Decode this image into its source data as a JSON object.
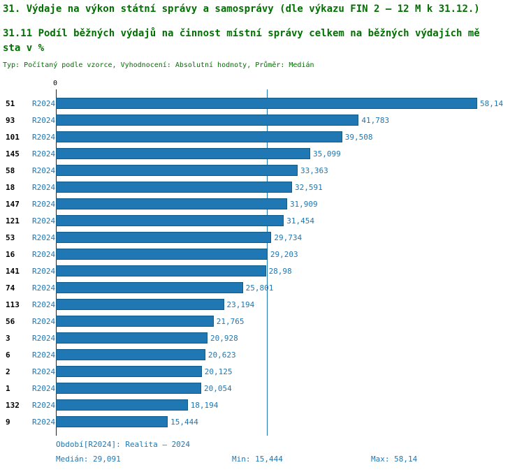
{
  "header": {
    "title": "31. Výdaje na výkon státní správy a samosprávy (dle výkazu FIN 2 – 12 M k 31.12.)",
    "subtitle_lines": [
      "31.11 Podíl běžných výdajů na činnost místní správy celkem na běžných výdajích mě",
      "sta v %"
    ],
    "meta": "Typ: Počítaný podle vzorce, Vyhodnocení: Absolutní hodnoty, Průměr: Medián"
  },
  "chart_data": {
    "type": "bar",
    "orientation": "horizontal",
    "title": "31.11 Podíl běžných výdajů na činnost místní správy celkem na běžných výdajích města v %",
    "axis_origin_label": "0",
    "series_label": "R2024",
    "categories": [
      "51",
      "93",
      "101",
      "145",
      "58",
      "18",
      "147",
      "121",
      "53",
      "16",
      "141",
      "74",
      "113",
      "56",
      "3",
      "6",
      "2",
      "1",
      "132",
      "9"
    ],
    "values": [
      58.14,
      41.783,
      39.508,
      35.099,
      33.363,
      32.591,
      31.909,
      31.454,
      29.734,
      29.203,
      28.98,
      25.801,
      23.194,
      21.765,
      20.928,
      20.623,
      20.125,
      20.054,
      18.194,
      15.444
    ],
    "value_labels": [
      "58,14",
      "41,783",
      "39,508",
      "35,099",
      "33,363",
      "32,591",
      "31,909",
      "31,454",
      "29,734",
      "29,203",
      "28,98",
      "25,801",
      "23,194",
      "21,765",
      "20,928",
      "20,623",
      "20,125",
      "20,054",
      "18,194",
      "15,444"
    ],
    "xlim": [
      0,
      58.14
    ],
    "median_value": 29.091,
    "grid": false,
    "legend_position": "none",
    "colors": {
      "bar": "#1f77b4",
      "bar_border": "#135a87",
      "value_label": "#1f77b4",
      "median_line": "#1f77b4",
      "title": "#007000",
      "category_label": "#000000"
    }
  },
  "footer": {
    "period": "Období[R2024]: Realita – 2024",
    "median": "Medián: 29,091",
    "min": "Min: 15,444",
    "max": "Max: 58,14"
  }
}
